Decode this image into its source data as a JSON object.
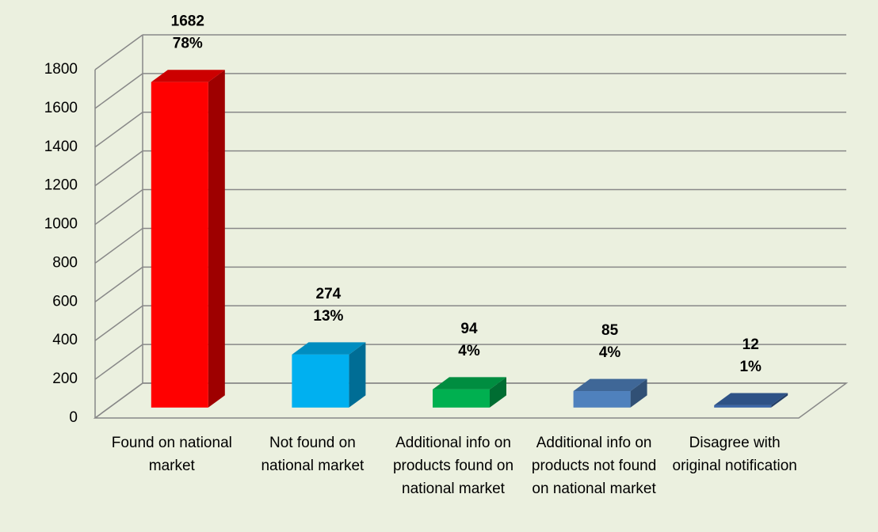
{
  "chart_data": {
    "type": "bar3d",
    "categories": [
      "Found on national market",
      "Not found on national market",
      "Additional info on products found on national market",
      "Additional info on products not found on national market",
      "Disagree with original notification"
    ],
    "values": [
      1682,
      274,
      94,
      85,
      12
    ],
    "percent_labels": [
      "78%",
      "13%",
      "4%",
      "4%",
      "1%"
    ],
    "colors": [
      "#ff0000",
      "#00b0f0",
      "#00b050",
      "#4f81bd",
      "#3a66a8"
    ],
    "ylim": [
      0,
      1800
    ],
    "yticks": [
      0,
      200,
      400,
      600,
      800,
      1000,
      1200,
      1400,
      1600,
      1800
    ],
    "grid": true
  }
}
